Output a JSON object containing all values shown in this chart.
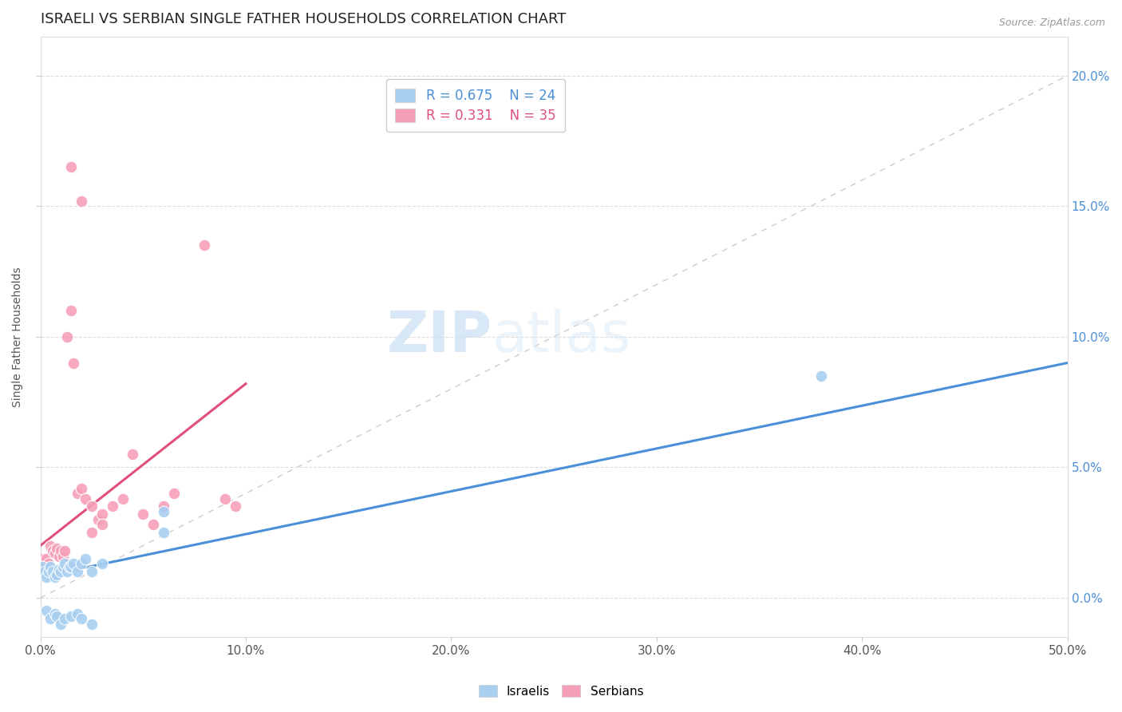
{
  "title": "ISRAELI VS SERBIAN SINGLE FATHER HOUSEHOLDS CORRELATION CHART",
  "source": "Source: ZipAtlas.com",
  "xlim": [
    0.0,
    0.5
  ],
  "ylim": [
    -0.015,
    0.215
  ],
  "ylabel": "Single Father Households",
  "watermark_zip": "ZIP",
  "watermark_atlas": "atlas",
  "legend_r_isr": "R = 0.675",
  "legend_n_isr": "N = 24",
  "legend_r_srb": "R = 0.331",
  "legend_n_srb": "N = 35",
  "isr_color": "#a8cff0",
  "isr_trend_color": "#4a90d9",
  "srb_color": "#f5a0b8",
  "srb_trend_color": "#e0507a",
  "diag_color": "#cccccc",
  "grid_color": "#dddddd",
  "bg_color": "#ffffff",
  "israelis_x": [
    0.001,
    0.002,
    0.003,
    0.004,
    0.005,
    0.006,
    0.007,
    0.008,
    0.009,
    0.01,
    0.011,
    0.012,
    0.013,
    0.014,
    0.015,
    0.016,
    0.018,
    0.02,
    0.022,
    0.025,
    0.03,
    0.06,
    0.38,
    0.06
  ],
  "israelis_y": [
    0.012,
    0.01,
    0.008,
    0.01,
    0.012,
    0.01,
    0.008,
    0.009,
    0.011,
    0.01,
    0.012,
    0.013,
    0.01,
    0.012,
    0.012,
    0.013,
    0.01,
    0.013,
    0.015,
    0.01,
    0.013,
    0.025,
    0.085,
    0.033
  ],
  "israelis_below_x": [
    0.003,
    0.005,
    0.007,
    0.008,
    0.01,
    0.012,
    0.015,
    0.018,
    0.02,
    0.025
  ],
  "israelis_below_y": [
    -0.005,
    -0.008,
    -0.006,
    -0.007,
    -0.01,
    -0.008,
    -0.007,
    -0.006,
    -0.008,
    -0.01
  ],
  "serbians_x": [
    0.001,
    0.002,
    0.003,
    0.004,
    0.005,
    0.006,
    0.007,
    0.008,
    0.009,
    0.01,
    0.011,
    0.012,
    0.013,
    0.015,
    0.016,
    0.018,
    0.02,
    0.022,
    0.025,
    0.028,
    0.03,
    0.035,
    0.04,
    0.045,
    0.05,
    0.055,
    0.06,
    0.065,
    0.08,
    0.09,
    0.095,
    0.025,
    0.03,
    0.015,
    0.02
  ],
  "serbians_y": [
    0.015,
    0.012,
    0.015,
    0.013,
    0.02,
    0.018,
    0.017,
    0.019,
    0.016,
    0.018,
    0.016,
    0.018,
    0.1,
    0.11,
    0.09,
    0.04,
    0.042,
    0.038,
    0.035,
    0.03,
    0.032,
    0.035,
    0.038,
    0.055,
    0.032,
    0.028,
    0.035,
    0.04,
    0.135,
    0.038,
    0.035,
    0.025,
    0.028,
    0.165,
    0.152
  ],
  "isr_trend_x": [
    0.0,
    0.5
  ],
  "isr_trend_y": [
    0.008,
    0.09
  ],
  "srb_trend_x": [
    0.0,
    0.1
  ],
  "srb_trend_y": [
    0.02,
    0.082
  ]
}
